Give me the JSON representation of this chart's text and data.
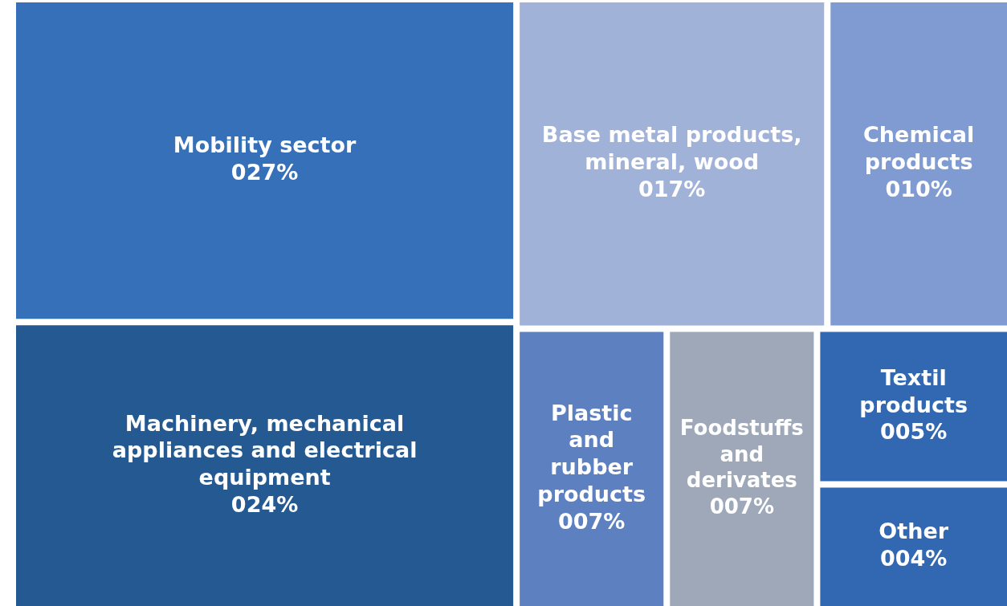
{
  "chart_data": {
    "type": "other",
    "categories": [
      "Mobility sector",
      "Machinery, mechanical appliances and electrical equipment",
      "Base metal products, mineral, wood",
      "Chemical products",
      "Plastic and rubber products",
      "Foodstuffs and derivates",
      "Textil products",
      "Other"
    ],
    "values": [
      27,
      24,
      17,
      10,
      7,
      7,
      5,
      4
    ],
    "value_labels": [
      "027%",
      "024%",
      "017%",
      "010%",
      "007%",
      "007%",
      "005%",
      "004%"
    ],
    "colors": [
      "#3670b8",
      "#245a91",
      "#a0b2d8",
      "#7f9bd1",
      "#5d80c1",
      "#9ea8b8",
      "#3267b1",
      "#3267b1"
    ],
    "legend": false
  }
}
